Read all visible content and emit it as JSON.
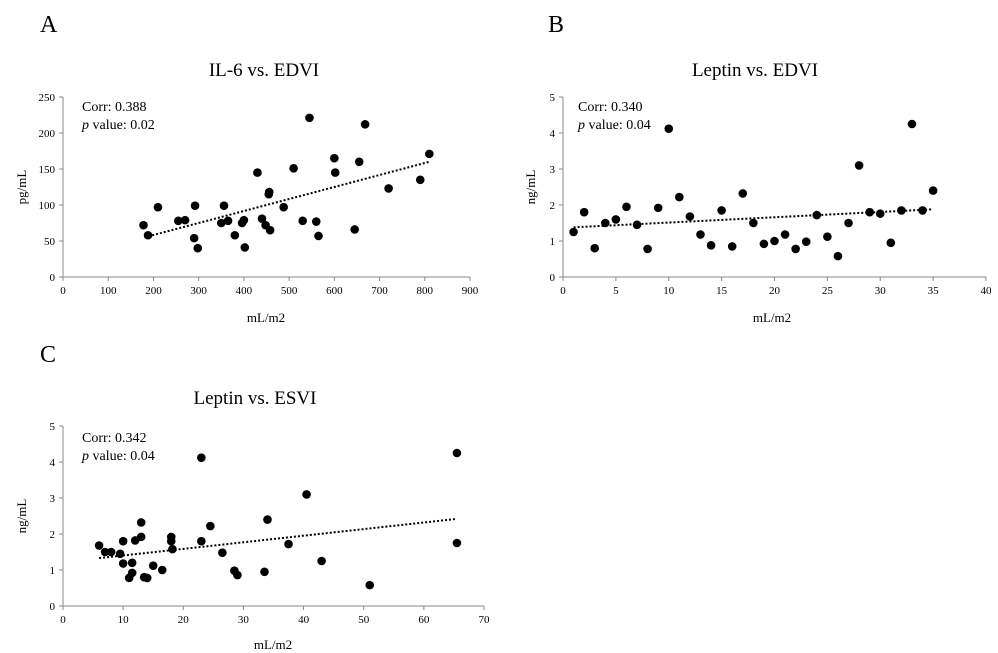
{
  "chart_data": [
    {
      "panel": "A",
      "type": "scatter",
      "title": "IL-6 vs. EDVI",
      "xlabel": "mL/m2",
      "ylabel": "pg/mL",
      "xlim": [
        0,
        900
      ],
      "ylim": [
        0,
        250
      ],
      "xticks": [
        0,
        100,
        200,
        300,
        400,
        500,
        600,
        700,
        800,
        900
      ],
      "yticks": [
        0,
        50,
        100,
        150,
        200,
        250
      ],
      "corr_label": "Corr: 0.388",
      "p_italic": "p",
      "p_rest": " value: 0.02",
      "trendline": [
        [
          180,
          55
        ],
        [
          810,
          160
        ]
      ],
      "points": [
        [
          178,
          72
        ],
        [
          188,
          58
        ],
        [
          210,
          97
        ],
        [
          255,
          78
        ],
        [
          270,
          79
        ],
        [
          290,
          54
        ],
        [
          292,
          99
        ],
        [
          298,
          40
        ],
        [
          350,
          75
        ],
        [
          356,
          99
        ],
        [
          365,
          78
        ],
        [
          380,
          58
        ],
        [
          396,
          75
        ],
        [
          400,
          79
        ],
        [
          402,
          41
        ],
        [
          430,
          145
        ],
        [
          440,
          81
        ],
        [
          448,
          72
        ],
        [
          455,
          115
        ],
        [
          456,
          118
        ],
        [
          458,
          65
        ],
        [
          488,
          97
        ],
        [
          510,
          151
        ],
        [
          530,
          78
        ],
        [
          545,
          221
        ],
        [
          560,
          77
        ],
        [
          565,
          57
        ],
        [
          600,
          165
        ],
        [
          602,
          145
        ],
        [
          645,
          66
        ],
        [
          655,
          160
        ],
        [
          668,
          212
        ],
        [
          720,
          123
        ],
        [
          790,
          135
        ],
        [
          810,
          171
        ]
      ]
    },
    {
      "panel": "B",
      "type": "scatter",
      "title": "Leptin vs. EDVI",
      "xlabel": "mL/m2",
      "ylabel": "ng/mL",
      "xlim": [
        0,
        40
      ],
      "ylim": [
        0,
        5
      ],
      "xticks": [
        0,
        5,
        10,
        15,
        20,
        25,
        30,
        35,
        40
      ],
      "yticks": [
        0,
        1,
        2,
        3,
        4,
        5
      ],
      "corr_label": "Corr: 0.340",
      "p_italic": "p",
      "p_rest": " value: 0.04",
      "trendline": [
        [
          1,
          1.38
        ],
        [
          35,
          1.88
        ]
      ],
      "points": [
        [
          1,
          1.25
        ],
        [
          2,
          1.8
        ],
        [
          3,
          0.8
        ],
        [
          4,
          1.5
        ],
        [
          5,
          1.6
        ],
        [
          6,
          1.95
        ],
        [
          7,
          1.45
        ],
        [
          8,
          0.78
        ],
        [
          9,
          1.92
        ],
        [
          10,
          4.12
        ],
        [
          11,
          2.22
        ],
        [
          12,
          1.68
        ],
        [
          13,
          1.18
        ],
        [
          14,
          0.88
        ],
        [
          15,
          1.85
        ],
        [
          16,
          0.85
        ],
        [
          17,
          2.32
        ],
        [
          18,
          1.5
        ],
        [
          19,
          0.92
        ],
        [
          20,
          1.0
        ],
        [
          21,
          1.18
        ],
        [
          22,
          0.78
        ],
        [
          23,
          0.98
        ],
        [
          24,
          1.72
        ],
        [
          25,
          1.12
        ],
        [
          26,
          0.58
        ],
        [
          27,
          1.5
        ],
        [
          28,
          3.1
        ],
        [
          29,
          1.8
        ],
        [
          30,
          1.76
        ],
        [
          31,
          0.95
        ],
        [
          32,
          1.85
        ],
        [
          33,
          4.25
        ],
        [
          34,
          1.85
        ],
        [
          35,
          2.4
        ]
      ]
    },
    {
      "panel": "C",
      "type": "scatter",
      "title": "Leptin vs. ESVI",
      "xlabel": "mL/m2",
      "ylabel": "ng/mL",
      "xlim": [
        0,
        70
      ],
      "ylim": [
        0,
        5
      ],
      "xticks": [
        0,
        10,
        20,
        30,
        40,
        50,
        60,
        70
      ],
      "yticks": [
        0,
        1,
        2,
        3,
        4,
        5
      ],
      "corr_label": "Corr: 0.342",
      "p_italic": "p",
      "p_rest": " value: 0.04",
      "trendline": [
        [
          6,
          1.33
        ],
        [
          65.5,
          2.42
        ]
      ],
      "points": [
        [
          6,
          1.68
        ],
        [
          7,
          1.5
        ],
        [
          8,
          1.5
        ],
        [
          9.5,
          1.45
        ],
        [
          10,
          1.8
        ],
        [
          10,
          1.18
        ],
        [
          11,
          0.78
        ],
        [
          11.5,
          0.92
        ],
        [
          11.5,
          1.2
        ],
        [
          12,
          1.82
        ],
        [
          13,
          1.92
        ],
        [
          13,
          2.32
        ],
        [
          13.5,
          0.8
        ],
        [
          14,
          0.78
        ],
        [
          15,
          1.12
        ],
        [
          16.5,
          1.0
        ],
        [
          18,
          1.92
        ],
        [
          18,
          1.8
        ],
        [
          18.2,
          1.58
        ],
        [
          23,
          4.12
        ],
        [
          23,
          1.8
        ],
        [
          24.5,
          2.22
        ],
        [
          26.5,
          1.48
        ],
        [
          28.5,
          0.98
        ],
        [
          29,
          0.86
        ],
        [
          33.5,
          0.95
        ],
        [
          34,
          2.4
        ],
        [
          37.5,
          1.72
        ],
        [
          40.5,
          3.1
        ],
        [
          43,
          1.25
        ],
        [
          51,
          0.58
        ],
        [
          65.5,
          4.25
        ],
        [
          65.5,
          1.75
        ]
      ]
    }
  ]
}
